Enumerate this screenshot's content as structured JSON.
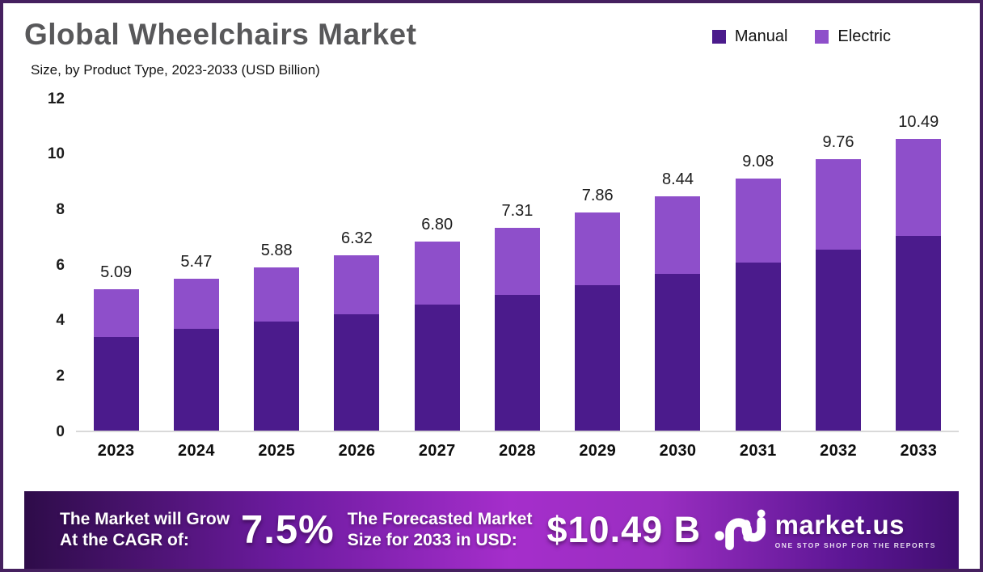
{
  "header": {
    "title": "Global Wheelchairs Market",
    "subtitle": "Size, by Product Type, 2023-2033 (USD Billion)"
  },
  "chart_data": {
    "type": "bar",
    "stacked": true,
    "title": "Global Wheelchairs Market",
    "subtitle": "Size, by Product Type, 2023-2033 (USD Billion)",
    "unit": "USD Billion",
    "categories": [
      "2023",
      "2024",
      "2025",
      "2026",
      "2027",
      "2028",
      "2029",
      "2030",
      "2031",
      "2032",
      "2033"
    ],
    "series": [
      {
        "name": "Manual",
        "color": "#4b1b8c",
        "values": [
          3.38,
          3.65,
          3.92,
          4.19,
          4.52,
          4.88,
          5.23,
          5.63,
          6.05,
          6.5,
          7.0
        ]
      },
      {
        "name": "Electric",
        "color": "#8e4fca",
        "values": [
          1.71,
          1.82,
          1.96,
          2.13,
          2.28,
          2.43,
          2.63,
          2.81,
          3.03,
          3.26,
          3.49
        ]
      }
    ],
    "totals": [
      5.09,
      5.47,
      5.88,
      6.32,
      6.8,
      7.31,
      7.86,
      8.44,
      9.08,
      9.76,
      10.49
    ],
    "total_labels": [
      "5.09",
      "5.47",
      "5.88",
      "6.32",
      "6.80",
      "7.31",
      "7.86",
      "8.44",
      "9.08",
      "9.76",
      "10.49"
    ],
    "ylim": [
      0,
      12
    ],
    "yticks": [
      12,
      10,
      8,
      6,
      4,
      2,
      0
    ],
    "grid": false,
    "legend_position": "top-right"
  },
  "banner": {
    "cagr_label_line1": "The Market will Grow",
    "cagr_label_line2": "At the CAGR of:",
    "cagr_value": "7.5%",
    "forecast_label_line1": "The Forecasted Market",
    "forecast_label_line2": "Size for 2033 in USD:",
    "forecast_value": "$10.49 B",
    "logo_text": "market.us",
    "logo_tagline": "ONE STOP SHOP FOR THE REPORTS"
  },
  "colors": {
    "manual": "#4b1b8c",
    "electric": "#8e4fca",
    "title_gray": "#58585a",
    "frame_border": "#45205f",
    "banner_gradient_start": "#2e0c49",
    "banner_gradient_mid": "#a52ecb",
    "banner_gradient_end": "#400e70"
  }
}
